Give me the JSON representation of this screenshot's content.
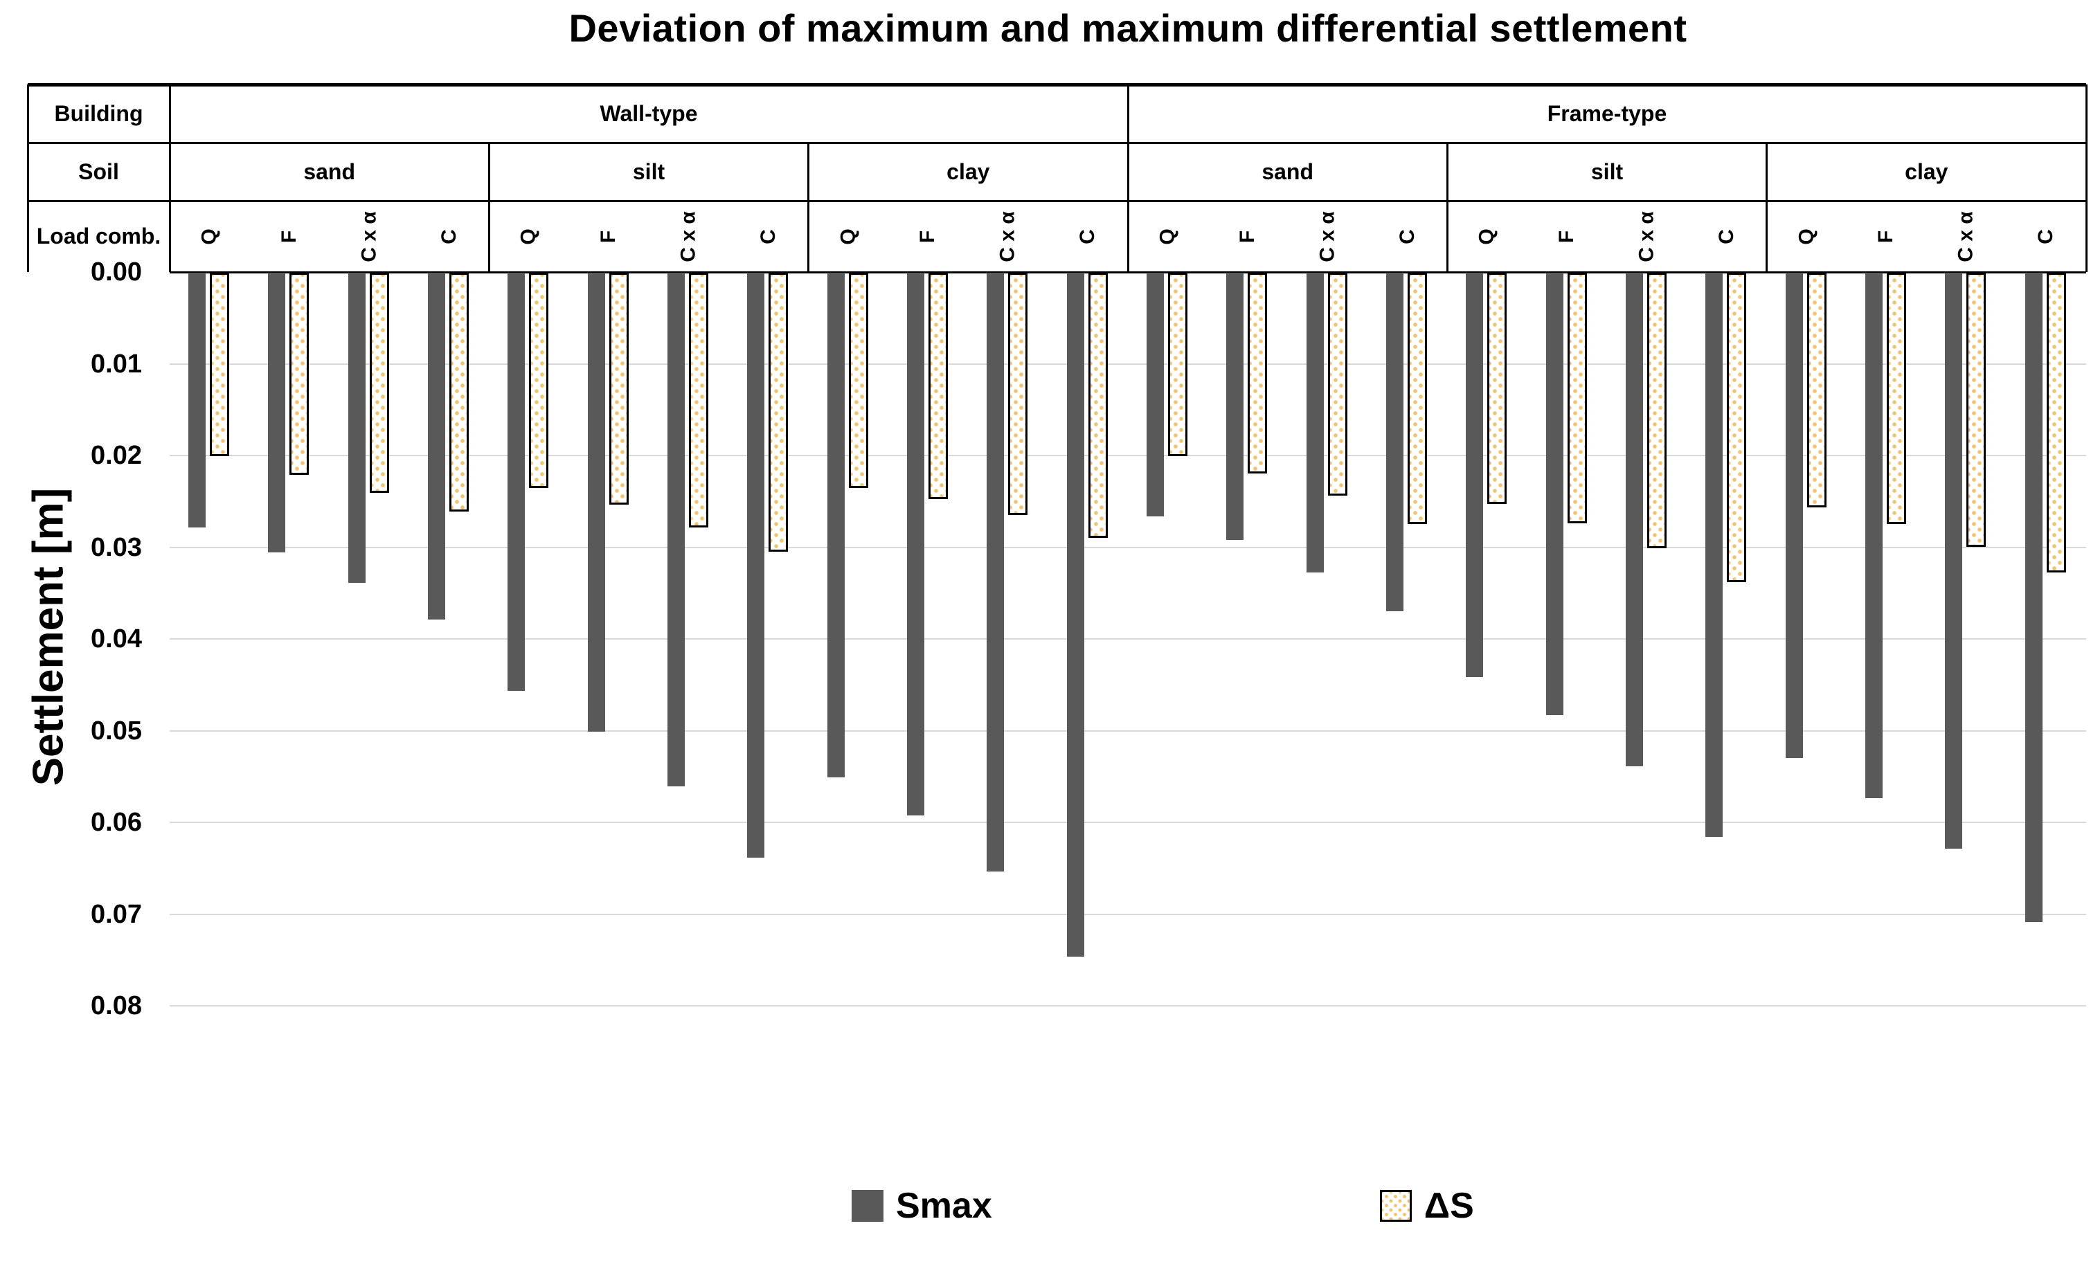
{
  "title": "Deviation of maximum and maximum differential settlement",
  "y_axis": {
    "label": "Settlement [m]",
    "ticks": [
      "0.00",
      "0.01",
      "0.02",
      "0.03",
      "0.04",
      "0.05",
      "0.06",
      "0.07",
      "0.08"
    ],
    "min": 0,
    "max": 0.08,
    "step": 0.01
  },
  "header": {
    "row_labels": [
      "Building",
      "Soil",
      "Load comb."
    ],
    "building_labels": [
      "Wall-type",
      "Frame-type"
    ],
    "soil_labels": [
      "sand",
      "silt",
      "clay"
    ]
  },
  "legend": {
    "items": [
      {
        "label": "Smax",
        "swatch": "solid-gray-square"
      },
      {
        "label": "ΔS",
        "swatch": "dotted-cream-square"
      }
    ]
  },
  "colors": {
    "smax_bar": "#595959",
    "ds_fill": "#ffffff",
    "ds_dots": "#f2c46d",
    "ds_border": "#000000",
    "gridline": "#d9d9d9",
    "table_border": "#000000",
    "background": "#ffffff"
  },
  "chart_data": {
    "type": "bar",
    "direction": "downward",
    "title": "Deviation of maximum and maximum differential settlement",
    "ylabel": "Settlement [m]",
    "ylim": [
      0,
      0.08
    ],
    "ytick_step": 0.01,
    "grid": true,
    "legend_position": "bottom",
    "series_names": [
      "Smax",
      "ΔS"
    ],
    "load_labels": [
      "Q",
      "F",
      "C x α",
      "C"
    ],
    "groups": [
      {
        "building": "Wall-type",
        "soil": "sand",
        "bars": [
          {
            "load": "Q",
            "Smax": 0.0278,
            "dS": 0.02
          },
          {
            "load": "F",
            "Smax": 0.0305,
            "dS": 0.022
          },
          {
            "load": "C x α",
            "Smax": 0.0338,
            "dS": 0.024
          },
          {
            "load": "C",
            "Smax": 0.0378,
            "dS": 0.026
          }
        ]
      },
      {
        "building": "Wall-type",
        "soil": "silt",
        "bars": [
          {
            "load": "Q",
            "Smax": 0.0456,
            "dS": 0.0235
          },
          {
            "load": "F",
            "Smax": 0.05,
            "dS": 0.0253
          },
          {
            "load": "C x α",
            "Smax": 0.056,
            "dS": 0.0278
          },
          {
            "load": "C",
            "Smax": 0.0638,
            "dS": 0.0304
          }
        ]
      },
      {
        "building": "Wall-type",
        "soil": "clay",
        "bars": [
          {
            "load": "Q",
            "Smax": 0.055,
            "dS": 0.0235
          },
          {
            "load": "F",
            "Smax": 0.0592,
            "dS": 0.0247
          },
          {
            "load": "C x α",
            "Smax": 0.0653,
            "dS": 0.0264
          },
          {
            "load": "C",
            "Smax": 0.0746,
            "dS": 0.0289
          }
        ]
      },
      {
        "building": "Frame-type",
        "soil": "sand",
        "bars": [
          {
            "load": "Q",
            "Smax": 0.0266,
            "dS": 0.02
          },
          {
            "load": "F",
            "Smax": 0.0291,
            "dS": 0.0219
          },
          {
            "load": "C x α",
            "Smax": 0.0327,
            "dS": 0.0243
          },
          {
            "load": "C",
            "Smax": 0.0369,
            "dS": 0.0274
          }
        ]
      },
      {
        "building": "Frame-type",
        "soil": "silt",
        "bars": [
          {
            "load": "Q",
            "Smax": 0.0441,
            "dS": 0.0252
          },
          {
            "load": "F",
            "Smax": 0.0482,
            "dS": 0.0273
          },
          {
            "load": "C x α",
            "Smax": 0.0538,
            "dS": 0.03
          },
          {
            "load": "C",
            "Smax": 0.0615,
            "dS": 0.0337
          }
        ]
      },
      {
        "building": "Frame-type",
        "soil": "clay",
        "bars": [
          {
            "load": "Q",
            "Smax": 0.0529,
            "dS": 0.0256
          },
          {
            "load": "F",
            "Smax": 0.0573,
            "dS": 0.0274
          },
          {
            "load": "C x α",
            "Smax": 0.0628,
            "dS": 0.0299
          },
          {
            "load": "C",
            "Smax": 0.0708,
            "dS": 0.0327
          }
        ]
      }
    ]
  }
}
